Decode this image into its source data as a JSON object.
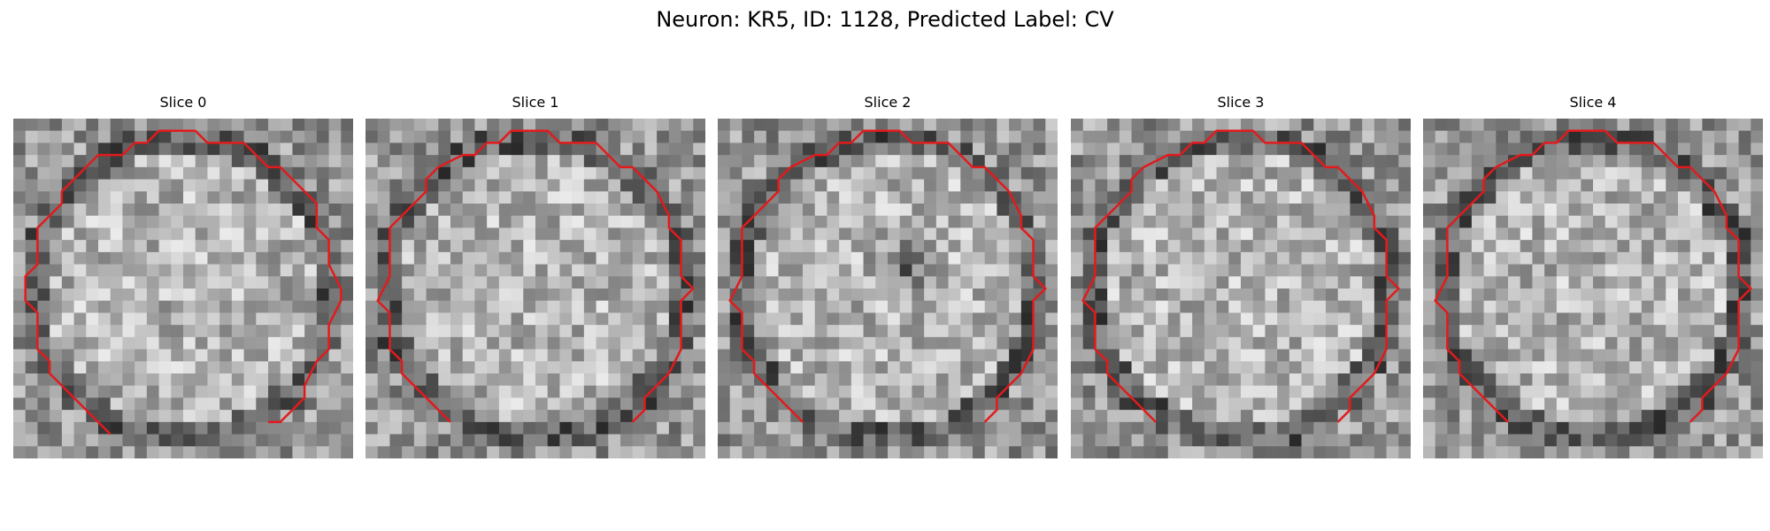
{
  "figure": {
    "title": "Neuron: KR5, ID: 1128, Predicted Label: CV"
  },
  "panels": [
    {
      "title": "Slice 0",
      "seed": 11,
      "dark_spot": false,
      "ring": "closed"
    },
    {
      "title": "Slice 1",
      "seed": 23,
      "dark_spot": false,
      "ring": "open"
    },
    {
      "title": "Slice 2",
      "seed": 37,
      "dark_spot": true,
      "ring": "open"
    },
    {
      "title": "Slice 3",
      "seed": 41,
      "dark_spot": false,
      "ring": "open"
    },
    {
      "title": "Slice 4",
      "seed": 53,
      "dark_spot": false,
      "ring": "open"
    }
  ],
  "colors": {
    "contour": "#e31a1c",
    "background": "#ffffff"
  }
}
